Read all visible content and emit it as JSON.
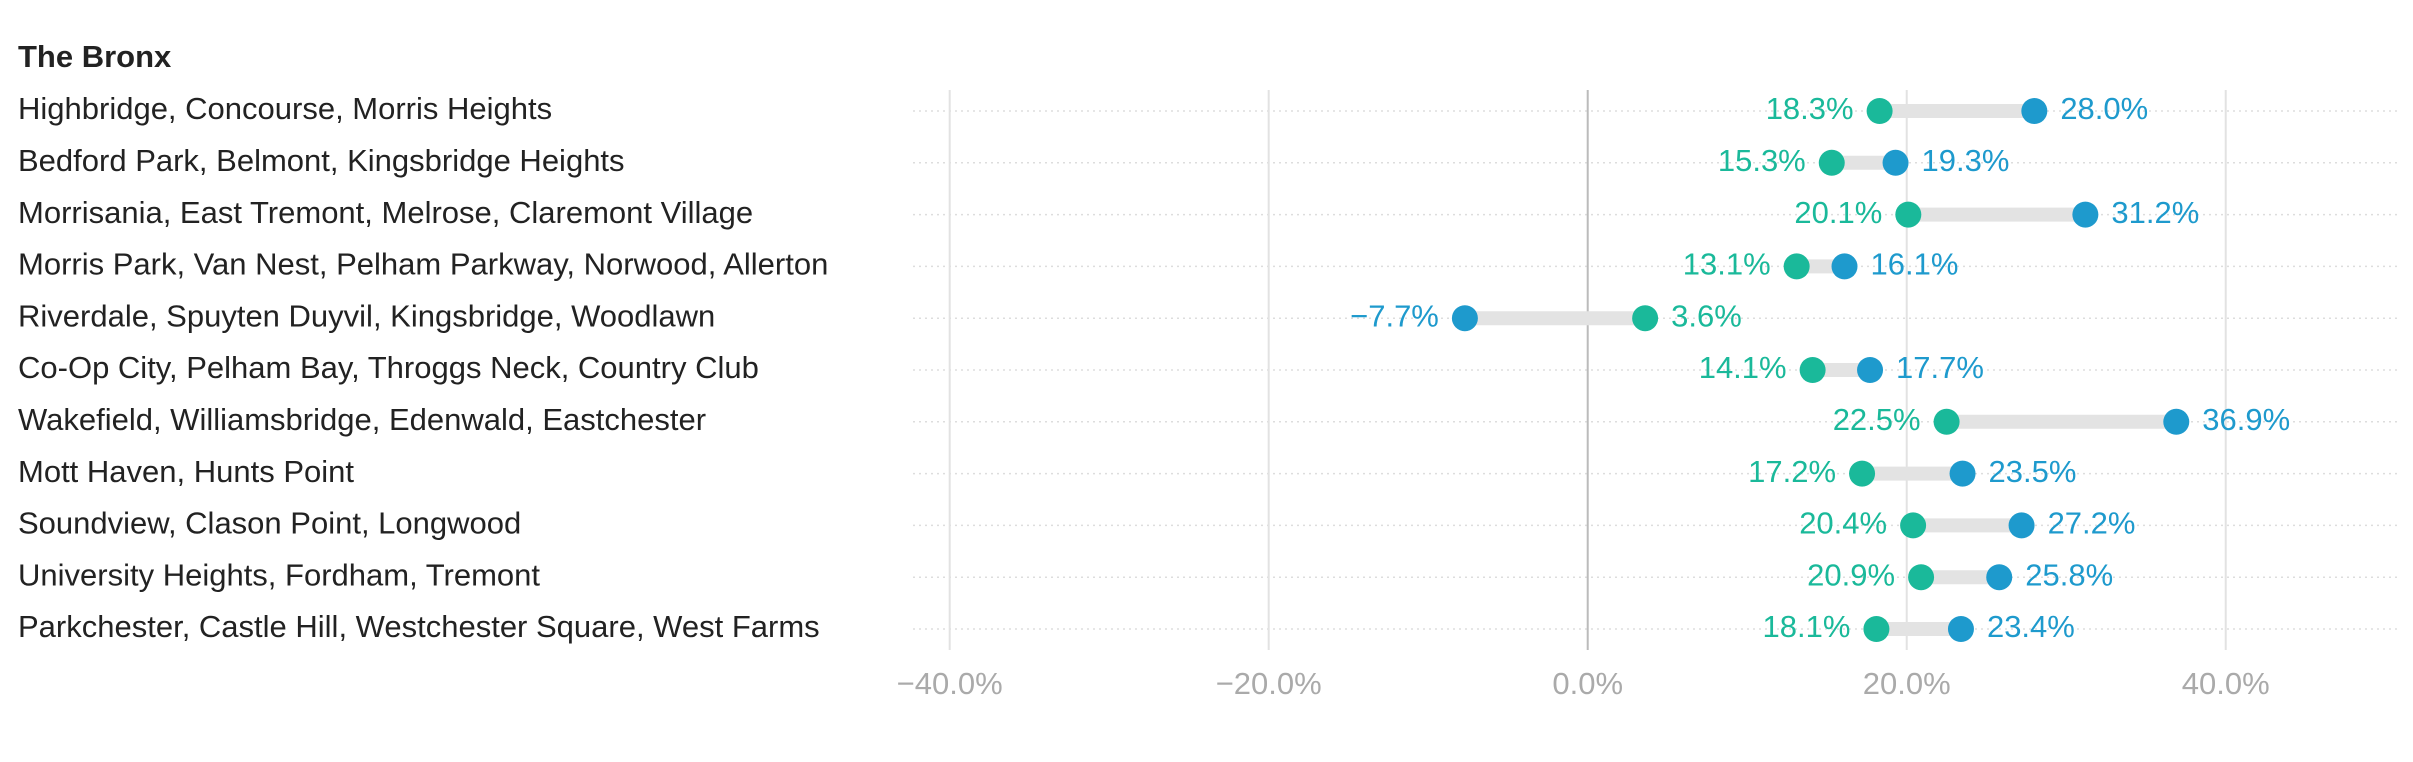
{
  "chart_data": {
    "type": "dumbbell",
    "title": "The Bronx",
    "categories": [
      "Highbridge, Concourse, Morris Heights",
      "Bedford Park, Belmont, Kingsbridge Heights",
      "Morrisania, East Tremont, Melrose, Claremont Village",
      "Morris Park, Van Nest, Pelham Parkway, Norwood, Allerton",
      "Riverdale, Spuyten Duyvil, Kingsbridge, Woodlawn",
      "Co-Op City, Pelham Bay, Throggs Neck, Country Club",
      "Wakefield, Williamsbridge, Edenwald, Eastchester",
      "Mott Haven, Hunts Point",
      "Soundview, Clason Point, Longwood",
      "University Heights, Fordham, Tremont",
      "Parkchester, Castle Hill, Westchester Square, West Farms"
    ],
    "series": [
      {
        "color": "#1ab99a",
        "values": [
          18.3,
          15.3,
          20.1,
          13.1,
          3.6,
          14.1,
          22.5,
          17.2,
          20.4,
          20.9,
          18.1
        ],
        "value_labels": [
          "18.3%",
          "15.3%",
          "20.1%",
          "13.1%",
          "3.6%",
          "14.1%",
          "22.5%",
          "17.2%",
          "20.4%",
          "20.9%",
          "18.1%"
        ]
      },
      {
        "color": "#1e9acd",
        "values": [
          28.0,
          19.3,
          31.2,
          16.1,
          -7.7,
          17.7,
          36.9,
          23.5,
          27.2,
          25.8,
          23.4
        ],
        "value_labels": [
          "28.0%",
          "19.3%",
          "31.2%",
          "16.1%",
          "−7.7%",
          "17.7%",
          "36.9%",
          "23.5%",
          "27.2%",
          "25.8%",
          "23.4%"
        ]
      }
    ],
    "xlim": [
      -42.3,
      50.8
    ],
    "xticks": [
      {
        "value": -40,
        "label": "−40.0%"
      },
      {
        "value": -20,
        "label": "−20.0%"
      },
      {
        "value": 0,
        "label": "0.0%"
      },
      {
        "value": 20,
        "label": "20.0%"
      },
      {
        "value": 40,
        "label": "40.0%"
      }
    ],
    "grid": true
  }
}
